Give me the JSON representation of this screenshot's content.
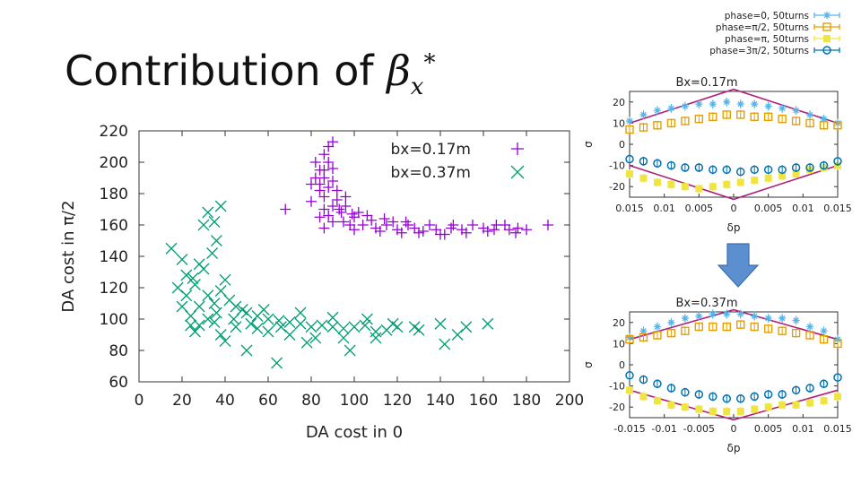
{
  "title": {
    "text": "Contribution of ",
    "symbol": "β",
    "subscript": "x",
    "superscript": "*"
  },
  "chart_data": [
    {
      "type": "scatter",
      "xlabel": "DA cost in 0",
      "ylabel": "DA cost in π/2",
      "xlim": [
        0,
        200
      ],
      "ylim": [
        60,
        220
      ],
      "xticks": [
        "0",
        "20",
        "40",
        "60",
        "80",
        "100",
        "120",
        "140",
        "160",
        "180",
        "200"
      ],
      "yticks": [
        "60",
        "80",
        "100",
        "120",
        "140",
        "160",
        "180",
        "200",
        "220"
      ],
      "grid": false,
      "legend_position": "top-right",
      "series": [
        {
          "name": "bx=0.17m",
          "marker": "plus",
          "color": "#9400d3",
          "points": [
            [
              90,
              213
            ],
            [
              88,
              210
            ],
            [
              86,
              205
            ],
            [
              88,
              200
            ],
            [
              84,
              195
            ],
            [
              82,
              200
            ],
            [
              86,
              190
            ],
            [
              90,
              188
            ],
            [
              88,
              184
            ],
            [
              84,
              182
            ],
            [
              80,
              186
            ],
            [
              86,
              178
            ],
            [
              92,
              176
            ],
            [
              90,
              172
            ],
            [
              86,
              170
            ],
            [
              84,
              165
            ],
            [
              88,
              166
            ],
            [
              94,
              168
            ],
            [
              96,
              172
            ],
            [
              90,
              162
            ],
            [
              95,
              162
            ],
            [
              100,
              165
            ],
            [
              98,
              160
            ],
            [
              104,
              160
            ],
            [
              108,
              163
            ],
            [
              110,
              158
            ],
            [
              115,
              160
            ],
            [
              118,
              162
            ],
            [
              120,
              157
            ],
            [
              125,
              160
            ],
            [
              128,
              158
            ],
            [
              130,
              155
            ],
            [
              135,
              160
            ],
            [
              138,
              157
            ],
            [
              140,
              154
            ],
            [
              145,
              158
            ],
            [
              150,
              157
            ],
            [
              155,
              160
            ],
            [
              160,
              158
            ],
            [
              165,
              157
            ],
            [
              170,
              160
            ],
            [
              175,
              155
            ],
            [
              180,
              157
            ],
            [
              190,
              160
            ],
            [
              68,
              170
            ],
            [
              86,
              158
            ],
            [
              100,
              157
            ],
            [
              112,
              156
            ],
            [
              122,
              155
            ],
            [
              132,
              156
            ],
            [
              142,
              154
            ],
            [
              152,
              155
            ],
            [
              162,
              156
            ],
            [
              172,
              157
            ],
            [
              92,
              182
            ],
            [
              96,
              178
            ],
            [
              102,
              168
            ],
            [
              106,
              166
            ],
            [
              86,
              195
            ],
            [
              90,
              196
            ],
            [
              84,
              186
            ],
            [
              82,
              190
            ],
            [
              93,
              170
            ],
            [
              99,
              167
            ],
            [
              80,
              175
            ],
            [
              114,
              164
            ],
            [
              124,
              162
            ],
            [
              146,
              160
            ],
            [
              166,
              160
            ],
            [
              176,
              158
            ]
          ]
        },
        {
          "name": "bx=0.37m",
          "marker": "cross",
          "color": "#009e73",
          "points": [
            [
              15,
              145
            ],
            [
              20,
              138
            ],
            [
              22,
              128
            ],
            [
              18,
              120
            ],
            [
              25,
              126
            ],
            [
              28,
              135
            ],
            [
              30,
              160
            ],
            [
              32,
              168
            ],
            [
              35,
              162
            ],
            [
              38,
              172
            ],
            [
              36,
              150
            ],
            [
              34,
              142
            ],
            [
              30,
              132
            ],
            [
              26,
              122
            ],
            [
              22,
              115
            ],
            [
              20,
              108
            ],
            [
              24,
              102
            ],
            [
              28,
              96
            ],
            [
              32,
              100
            ],
            [
              35,
              110
            ],
            [
              38,
              118
            ],
            [
              40,
              125
            ],
            [
              42,
              112
            ],
            [
              45,
              108
            ],
            [
              48,
              106
            ],
            [
              50,
              104
            ],
            [
              55,
              102
            ],
            [
              60,
              100
            ],
            [
              65,
              99
            ],
            [
              70,
              98
            ],
            [
              75,
              97
            ],
            [
              80,
              95
            ],
            [
              85,
              96
            ],
            [
              90,
              95
            ],
            [
              95,
              94
            ],
            [
              100,
              95
            ],
            [
              105,
              96
            ],
            [
              110,
              92
            ],
            [
              115,
              93
            ],
            [
              120,
              95
            ],
            [
              128,
              95
            ],
            [
              140,
              97
            ],
            [
              152,
              95
            ],
            [
              162,
              97
            ],
            [
              64,
              72
            ],
            [
              50,
              80
            ],
            [
              40,
              86
            ],
            [
              26,
              92
            ],
            [
              35,
              98
            ],
            [
              45,
              95
            ],
            [
              55,
              94
            ],
            [
              60,
              92
            ],
            [
              70,
              90
            ],
            [
              82,
              88
            ],
            [
              95,
              88
            ],
            [
              110,
              88
            ],
            [
              142,
              84
            ],
            [
              98,
              80
            ],
            [
              36,
              104
            ],
            [
              44,
              100
            ],
            [
              52,
              97
            ],
            [
              58,
              106
            ],
            [
              75,
              104
            ],
            [
              90,
              101
            ],
            [
              106,
              100
            ],
            [
              118,
              97
            ],
            [
              130,
              93
            ],
            [
              148,
              90
            ],
            [
              38,
              90
            ],
            [
              78,
              85
            ],
            [
              66,
              95
            ],
            [
              32,
              115
            ],
            [
              28,
              108
            ],
            [
              24,
              96
            ]
          ]
        }
      ]
    },
    {
      "type": "scatter",
      "title": "Bx=0.17m",
      "xlabel": "δp",
      "ylabel": "σ",
      "xlim": [
        -0.015,
        0.015
      ],
      "ylim": [
        -25,
        25
      ],
      "xticks": [
        "0.015",
        "0.01",
        "0.005",
        "0",
        "0.005",
        "0.01",
        "0.015"
      ],
      "yticks": [
        "20",
        "10",
        "0",
        "-10",
        "-20"
      ],
      "series": [
        {
          "name": "phase=0, 50turns",
          "marker": "star",
          "color": "#56b4e9",
          "x": [
            -0.015,
            -0.013,
            -0.011,
            -0.009,
            -0.007,
            -0.005,
            -0.003,
            -0.001,
            0.001,
            0.003,
            0.005,
            0.007,
            0.009,
            0.011,
            0.013,
            0.015
          ],
          "y": [
            11,
            14,
            16,
            17,
            18,
            19,
            19,
            20,
            19,
            19,
            18,
            17,
            16,
            14,
            12,
            10
          ]
        },
        {
          "name": "phase=π/2, 50turns",
          "marker": "open-square",
          "color": "#e69f00",
          "x": [
            -0.015,
            -0.013,
            -0.011,
            -0.009,
            -0.007,
            -0.005,
            -0.003,
            -0.001,
            0.001,
            0.003,
            0.005,
            0.007,
            0.009,
            0.011,
            0.013,
            0.015
          ],
          "y": [
            7,
            8,
            9,
            10,
            11,
            12,
            13,
            14,
            14,
            13,
            13,
            12,
            11,
            10,
            9,
            9
          ]
        },
        {
          "name": "phase=π, 50turns",
          "marker": "filled-square",
          "color": "#f0e442",
          "x": [
            -0.015,
            -0.013,
            -0.011,
            -0.009,
            -0.007,
            -0.005,
            -0.003,
            -0.001,
            0.001,
            0.003,
            0.005,
            0.007,
            0.009,
            0.011,
            0.013,
            0.015
          ],
          "y": [
            -14,
            -16,
            -18,
            -19,
            -20,
            -21,
            -20,
            -19,
            -18,
            -17,
            -16,
            -15,
            -14,
            -12,
            -11,
            -10
          ]
        },
        {
          "name": "phase=3π/2, 50turns",
          "marker": "open-circle",
          "color": "#0072b2",
          "x": [
            -0.015,
            -0.013,
            -0.011,
            -0.009,
            -0.007,
            -0.005,
            -0.003,
            -0.001,
            0.001,
            0.003,
            0.005,
            0.007,
            0.009,
            0.011,
            0.013,
            0.015
          ],
          "y": [
            -7,
            -8,
            -9,
            -10,
            -11,
            -11,
            -12,
            -12,
            -13,
            -12,
            -12,
            -12,
            -11,
            -11,
            -10,
            -8
          ]
        }
      ],
      "envelope": {
        "color": "#b0207a",
        "x": [
          -0.015,
          0,
          0.015
        ],
        "upper": [
          10,
          26,
          10
        ],
        "lower": [
          -10,
          -26,
          -10
        ]
      }
    },
    {
      "type": "scatter",
      "title": "Bx=0.37m",
      "xlabel": "δp",
      "ylabel": "σ",
      "xlim": [
        -0.015,
        0.015
      ],
      "ylim": [
        -25,
        25
      ],
      "xticks": [
        "-0.015",
        "-0.01",
        "-0.005",
        "0",
        "0.005",
        "0.01",
        "0.015"
      ],
      "yticks": [
        "20",
        "10",
        "0",
        "-10",
        "-20"
      ],
      "series": [
        {
          "name": "phase=0, 50turns",
          "marker": "star",
          "color": "#56b4e9",
          "x": [
            -0.015,
            -0.013,
            -0.011,
            -0.009,
            -0.007,
            -0.005,
            -0.003,
            -0.001,
            0.001,
            0.003,
            0.005,
            0.007,
            0.009,
            0.011,
            0.013,
            0.015
          ],
          "y": [
            13,
            16,
            18,
            20,
            22,
            23,
            24,
            24,
            24,
            23,
            22,
            22,
            21,
            18,
            16,
            12
          ]
        },
        {
          "name": "phase=π/2, 50turns",
          "marker": "open-square",
          "color": "#e69f00",
          "x": [
            -0.015,
            -0.013,
            -0.011,
            -0.009,
            -0.007,
            -0.005,
            -0.003,
            -0.001,
            0.001,
            0.003,
            0.005,
            0.007,
            0.009,
            0.011,
            0.013,
            0.015
          ],
          "y": [
            12,
            13,
            14,
            15,
            16,
            18,
            18,
            18,
            19,
            18,
            17,
            16,
            15,
            14,
            12,
            10
          ]
        },
        {
          "name": "phase=π, 50turns",
          "marker": "filled-square",
          "color": "#f0e442",
          "x": [
            -0.015,
            -0.013,
            -0.011,
            -0.009,
            -0.007,
            -0.005,
            -0.003,
            -0.001,
            0.001,
            0.003,
            0.005,
            0.007,
            0.009,
            0.011,
            0.013,
            0.015
          ],
          "y": [
            -12,
            -15,
            -17,
            -19,
            -20,
            -21,
            -22,
            -22,
            -22,
            -21,
            -20,
            -19,
            -19,
            -18,
            -17,
            -15
          ]
        },
        {
          "name": "phase=3π/2, 50turns",
          "marker": "open-circle",
          "color": "#0072b2",
          "x": [
            -0.015,
            -0.013,
            -0.011,
            -0.009,
            -0.007,
            -0.005,
            -0.003,
            -0.001,
            0.001,
            0.003,
            0.005,
            0.007,
            0.009,
            0.011,
            0.013,
            0.015
          ],
          "y": [
            -5,
            -7,
            -9,
            -11,
            -13,
            -14,
            -15,
            -16,
            -16,
            -15,
            -14,
            -14,
            -12,
            -11,
            -9,
            -6
          ]
        }
      ],
      "envelope": {
        "color": "#b0207a",
        "x": [
          -0.015,
          0,
          0.015
        ],
        "upper": [
          12,
          26,
          12
        ],
        "lower": [
          -12,
          -26,
          -12
        ]
      }
    }
  ],
  "arrow": {
    "color": "#5b8fd0",
    "icon": "down-arrow-icon"
  }
}
